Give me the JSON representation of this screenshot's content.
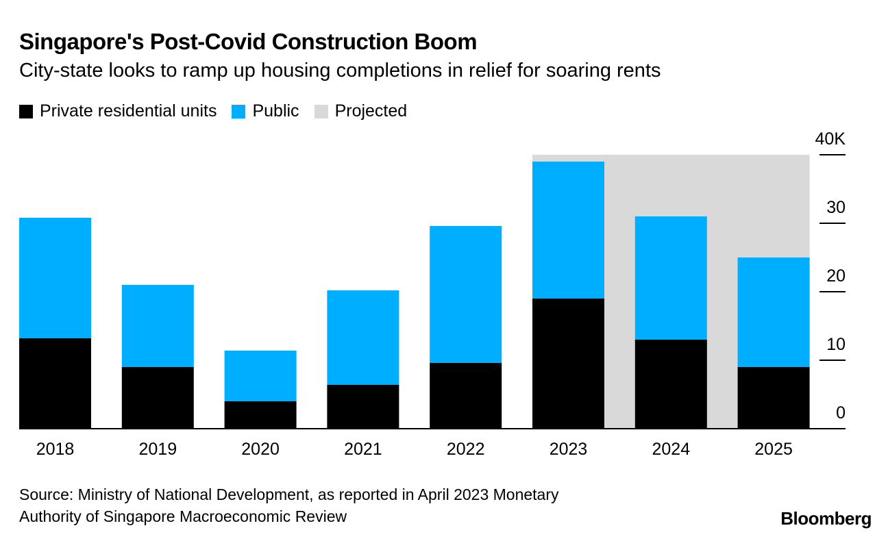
{
  "title": "Singapore's Post-Covid Construction Boom",
  "subtitle": "City-state looks to ramp up housing completions in relief for soaring rents",
  "source": "Source: Ministry of National Development, as reported in April 2023 Monetary Authority of Singapore Macroeconomic Review",
  "source_line1": "Source: Ministry of National Development, as reported in April 2023 Monetary",
  "source_line2": "Authority of Singapore Macroeconomic Review",
  "logo": "Bloomberg",
  "colors": {
    "private": "#000000",
    "public": "#00aeff",
    "projected": "#d9d9d9"
  },
  "legend": [
    {
      "label": "Private residential units",
      "color": "#000000"
    },
    {
      "label": "Public",
      "color": "#00aeff"
    },
    {
      "label": "Projected",
      "color": "#d9d9d9"
    }
  ],
  "chart_data": {
    "type": "bar",
    "stacked": true,
    "categories": [
      "2018",
      "2019",
      "2020",
      "2021",
      "2022",
      "2023",
      "2024",
      "2025"
    ],
    "series": [
      {
        "name": "Private residential units",
        "values": [
          13.2,
          9.0,
          4.0,
          6.4,
          9.6,
          19.0,
          13.0,
          9.0
        ]
      },
      {
        "name": "Public",
        "values": [
          17.6,
          12.0,
          7.4,
          13.8,
          20.0,
          20.0,
          18.0,
          16.0
        ]
      }
    ],
    "projected_range": [
      "2023",
      "2025"
    ],
    "ylim": [
      0,
      40
    ],
    "yticks": [
      0,
      10,
      20,
      30,
      40
    ],
    "ytick_labels": [
      "0",
      "10",
      "20",
      "30",
      "40K"
    ],
    "y_axis_position": "right",
    "grid": false,
    "legend_position": "top-left"
  }
}
